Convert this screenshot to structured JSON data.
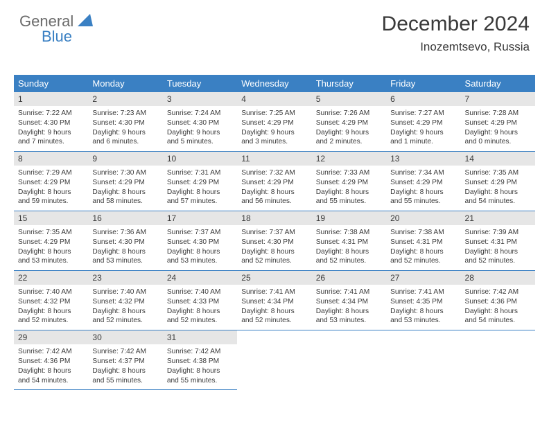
{
  "logo": {
    "text1": "General",
    "text2": "Blue"
  },
  "header": {
    "month_title": "December 2024",
    "location": "Inozemtsevo, Russia"
  },
  "weekdays": [
    "Sunday",
    "Monday",
    "Tuesday",
    "Wednesday",
    "Thursday",
    "Friday",
    "Saturday"
  ],
  "colors": {
    "header_bg": "#3a80c3",
    "header_text": "#ffffff",
    "daynum_bg": "#e6e6e6",
    "body_text": "#3a3a3a",
    "row_border": "#3a80c3"
  },
  "weeks": [
    [
      {
        "day": "1",
        "sunrise": "Sunrise: 7:22 AM",
        "sunset": "Sunset: 4:30 PM",
        "daylight": "Daylight: 9 hours and 7 minutes."
      },
      {
        "day": "2",
        "sunrise": "Sunrise: 7:23 AM",
        "sunset": "Sunset: 4:30 PM",
        "daylight": "Daylight: 9 hours and 6 minutes."
      },
      {
        "day": "3",
        "sunrise": "Sunrise: 7:24 AM",
        "sunset": "Sunset: 4:30 PM",
        "daylight": "Daylight: 9 hours and 5 minutes."
      },
      {
        "day": "4",
        "sunrise": "Sunrise: 7:25 AM",
        "sunset": "Sunset: 4:29 PM",
        "daylight": "Daylight: 9 hours and 3 minutes."
      },
      {
        "day": "5",
        "sunrise": "Sunrise: 7:26 AM",
        "sunset": "Sunset: 4:29 PM",
        "daylight": "Daylight: 9 hours and 2 minutes."
      },
      {
        "day": "6",
        "sunrise": "Sunrise: 7:27 AM",
        "sunset": "Sunset: 4:29 PM",
        "daylight": "Daylight: 9 hours and 1 minute."
      },
      {
        "day": "7",
        "sunrise": "Sunrise: 7:28 AM",
        "sunset": "Sunset: 4:29 PM",
        "daylight": "Daylight: 9 hours and 0 minutes."
      }
    ],
    [
      {
        "day": "8",
        "sunrise": "Sunrise: 7:29 AM",
        "sunset": "Sunset: 4:29 PM",
        "daylight": "Daylight: 8 hours and 59 minutes."
      },
      {
        "day": "9",
        "sunrise": "Sunrise: 7:30 AM",
        "sunset": "Sunset: 4:29 PM",
        "daylight": "Daylight: 8 hours and 58 minutes."
      },
      {
        "day": "10",
        "sunrise": "Sunrise: 7:31 AM",
        "sunset": "Sunset: 4:29 PM",
        "daylight": "Daylight: 8 hours and 57 minutes."
      },
      {
        "day": "11",
        "sunrise": "Sunrise: 7:32 AM",
        "sunset": "Sunset: 4:29 PM",
        "daylight": "Daylight: 8 hours and 56 minutes."
      },
      {
        "day": "12",
        "sunrise": "Sunrise: 7:33 AM",
        "sunset": "Sunset: 4:29 PM",
        "daylight": "Daylight: 8 hours and 55 minutes."
      },
      {
        "day": "13",
        "sunrise": "Sunrise: 7:34 AM",
        "sunset": "Sunset: 4:29 PM",
        "daylight": "Daylight: 8 hours and 55 minutes."
      },
      {
        "day": "14",
        "sunrise": "Sunrise: 7:35 AM",
        "sunset": "Sunset: 4:29 PM",
        "daylight": "Daylight: 8 hours and 54 minutes."
      }
    ],
    [
      {
        "day": "15",
        "sunrise": "Sunrise: 7:35 AM",
        "sunset": "Sunset: 4:29 PM",
        "daylight": "Daylight: 8 hours and 53 minutes."
      },
      {
        "day": "16",
        "sunrise": "Sunrise: 7:36 AM",
        "sunset": "Sunset: 4:30 PM",
        "daylight": "Daylight: 8 hours and 53 minutes."
      },
      {
        "day": "17",
        "sunrise": "Sunrise: 7:37 AM",
        "sunset": "Sunset: 4:30 PM",
        "daylight": "Daylight: 8 hours and 53 minutes."
      },
      {
        "day": "18",
        "sunrise": "Sunrise: 7:37 AM",
        "sunset": "Sunset: 4:30 PM",
        "daylight": "Daylight: 8 hours and 52 minutes."
      },
      {
        "day": "19",
        "sunrise": "Sunrise: 7:38 AM",
        "sunset": "Sunset: 4:31 PM",
        "daylight": "Daylight: 8 hours and 52 minutes."
      },
      {
        "day": "20",
        "sunrise": "Sunrise: 7:38 AM",
        "sunset": "Sunset: 4:31 PM",
        "daylight": "Daylight: 8 hours and 52 minutes."
      },
      {
        "day": "21",
        "sunrise": "Sunrise: 7:39 AM",
        "sunset": "Sunset: 4:31 PM",
        "daylight": "Daylight: 8 hours and 52 minutes."
      }
    ],
    [
      {
        "day": "22",
        "sunrise": "Sunrise: 7:40 AM",
        "sunset": "Sunset: 4:32 PM",
        "daylight": "Daylight: 8 hours and 52 minutes."
      },
      {
        "day": "23",
        "sunrise": "Sunrise: 7:40 AM",
        "sunset": "Sunset: 4:32 PM",
        "daylight": "Daylight: 8 hours and 52 minutes."
      },
      {
        "day": "24",
        "sunrise": "Sunrise: 7:40 AM",
        "sunset": "Sunset: 4:33 PM",
        "daylight": "Daylight: 8 hours and 52 minutes."
      },
      {
        "day": "25",
        "sunrise": "Sunrise: 7:41 AM",
        "sunset": "Sunset: 4:34 PM",
        "daylight": "Daylight: 8 hours and 52 minutes."
      },
      {
        "day": "26",
        "sunrise": "Sunrise: 7:41 AM",
        "sunset": "Sunset: 4:34 PM",
        "daylight": "Daylight: 8 hours and 53 minutes."
      },
      {
        "day": "27",
        "sunrise": "Sunrise: 7:41 AM",
        "sunset": "Sunset: 4:35 PM",
        "daylight": "Daylight: 8 hours and 53 minutes."
      },
      {
        "day": "28",
        "sunrise": "Sunrise: 7:42 AM",
        "sunset": "Sunset: 4:36 PM",
        "daylight": "Daylight: 8 hours and 54 minutes."
      }
    ],
    [
      {
        "day": "29",
        "sunrise": "Sunrise: 7:42 AM",
        "sunset": "Sunset: 4:36 PM",
        "daylight": "Daylight: 8 hours and 54 minutes."
      },
      {
        "day": "30",
        "sunrise": "Sunrise: 7:42 AM",
        "sunset": "Sunset: 4:37 PM",
        "daylight": "Daylight: 8 hours and 55 minutes."
      },
      {
        "day": "31",
        "sunrise": "Sunrise: 7:42 AM",
        "sunset": "Sunset: 4:38 PM",
        "daylight": "Daylight: 8 hours and 55 minutes."
      },
      null,
      null,
      null,
      null
    ]
  ]
}
